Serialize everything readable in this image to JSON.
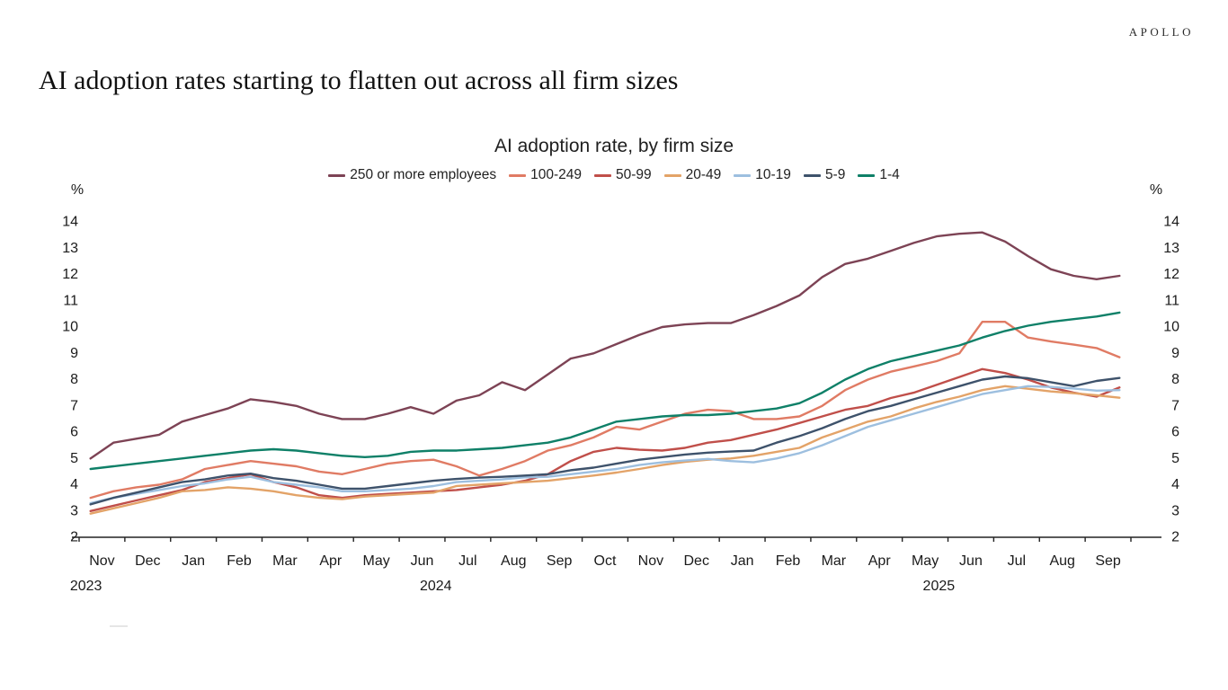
{
  "header": {
    "brand": "APOLLO",
    "title": "AI adoption rates starting to flatten out across all firm sizes"
  },
  "chart_data": {
    "type": "line",
    "title": "AI adoption rate, by firm size",
    "unit_label": "%",
    "legend_position": "top",
    "grid": false,
    "y_axis": {
      "min": 2,
      "max": 14,
      "ticks": [
        14,
        13,
        12,
        11,
        10,
        9,
        8,
        7,
        6,
        5,
        4,
        3,
        2
      ],
      "label": "%"
    },
    "x_axis": {
      "months": [
        "Nov",
        "Dec",
        "Jan",
        "Feb",
        "Mar",
        "Apr",
        "May",
        "Jun",
        "Jul",
        "Aug",
        "Sep",
        "Oct",
        "Nov",
        "Dec",
        "Jan",
        "Feb",
        "Mar",
        "Apr",
        "May",
        "Jun",
        "Jul",
        "Aug",
        "Sep"
      ],
      "years": [
        {
          "label": "2023",
          "month_center": -0.35
        },
        {
          "label": "2024",
          "month_center": 7.3
        },
        {
          "label": "2025",
          "month_center": 18.3
        }
      ]
    },
    "points_per_month": 2,
    "series": [
      {
        "name": "250 or more employees",
        "color": "#7d4355",
        "values": [
          5.0,
          5.6,
          5.75,
          5.9,
          6.4,
          6.65,
          6.9,
          7.25,
          7.15,
          7.0,
          6.7,
          6.5,
          6.5,
          6.7,
          6.95,
          6.7,
          7.2,
          7.4,
          7.9,
          7.6,
          8.2,
          8.8,
          9.0,
          9.35,
          9.7,
          10.0,
          10.1,
          10.15,
          10.15,
          10.45,
          10.8,
          11.2,
          11.9,
          12.4,
          12.6,
          12.9,
          13.2,
          13.45,
          13.55,
          13.6,
          13.25,
          12.7,
          12.2,
          11.95,
          11.82,
          11.95
        ]
      },
      {
        "name": "100-249",
        "color": "#e07b64",
        "values": [
          3.5,
          3.75,
          3.9,
          4.0,
          4.2,
          4.6,
          4.75,
          4.9,
          4.8,
          4.7,
          4.5,
          4.4,
          4.6,
          4.8,
          4.9,
          4.95,
          4.7,
          4.35,
          4.6,
          4.9,
          5.3,
          5.5,
          5.8,
          6.2,
          6.1,
          6.4,
          6.7,
          6.85,
          6.8,
          6.5,
          6.5,
          6.6,
          7.0,
          7.6,
          8.0,
          8.3,
          8.5,
          8.7,
          9.0,
          10.2,
          10.2,
          9.6,
          9.45,
          9.33,
          9.2,
          8.85
        ]
      },
      {
        "name": "50-99",
        "color": "#c04f4a",
        "values": [
          3.0,
          3.2,
          3.4,
          3.6,
          3.8,
          4.1,
          4.25,
          4.4,
          4.1,
          3.9,
          3.6,
          3.5,
          3.6,
          3.65,
          3.7,
          3.75,
          3.8,
          3.9,
          4.0,
          4.15,
          4.4,
          4.9,
          5.25,
          5.4,
          5.33,
          5.3,
          5.4,
          5.6,
          5.7,
          5.9,
          6.1,
          6.35,
          6.6,
          6.85,
          7.0,
          7.3,
          7.5,
          7.8,
          8.1,
          8.4,
          8.25,
          8.0,
          7.7,
          7.5,
          7.35,
          7.7
        ]
      },
      {
        "name": "20-49",
        "color": "#e3a368",
        "values": [
          2.9,
          3.1,
          3.3,
          3.5,
          3.75,
          3.8,
          3.9,
          3.85,
          3.75,
          3.6,
          3.5,
          3.45,
          3.55,
          3.6,
          3.65,
          3.7,
          3.95,
          4.0,
          4.05,
          4.1,
          4.15,
          4.25,
          4.35,
          4.46,
          4.6,
          4.75,
          4.87,
          4.95,
          5.0,
          5.1,
          5.25,
          5.4,
          5.8,
          6.1,
          6.4,
          6.6,
          6.9,
          7.15,
          7.35,
          7.6,
          7.75,
          7.65,
          7.55,
          7.48,
          7.4,
          7.31
        ]
      },
      {
        "name": "10-19",
        "color": "#9dbfdf",
        "values": [
          3.3,
          3.5,
          3.65,
          3.8,
          3.95,
          4.05,
          4.2,
          4.3,
          4.1,
          4.0,
          3.9,
          3.75,
          3.75,
          3.8,
          3.85,
          3.95,
          4.1,
          4.15,
          4.2,
          4.28,
          4.3,
          4.4,
          4.5,
          4.6,
          4.75,
          4.85,
          4.92,
          4.98,
          4.9,
          4.85,
          5.0,
          5.2,
          5.5,
          5.85,
          6.2,
          6.45,
          6.7,
          6.95,
          7.2,
          7.45,
          7.6,
          7.75,
          7.72,
          7.66,
          7.58,
          7.6
        ]
      },
      {
        "name": "5-9",
        "color": "#3e526b",
        "values": [
          3.25,
          3.5,
          3.7,
          3.9,
          4.1,
          4.2,
          4.35,
          4.42,
          4.25,
          4.15,
          4.0,
          3.85,
          3.85,
          3.95,
          4.05,
          4.15,
          4.22,
          4.27,
          4.3,
          4.35,
          4.4,
          4.55,
          4.65,
          4.8,
          4.95,
          5.05,
          5.15,
          5.22,
          5.26,
          5.3,
          5.6,
          5.85,
          6.15,
          6.5,
          6.8,
          7.0,
          7.25,
          7.5,
          7.75,
          8.0,
          8.12,
          8.05,
          7.9,
          7.75,
          7.95,
          8.06
        ]
      },
      {
        "name": "1-4",
        "color": "#0f8068",
        "values": [
          4.6,
          4.7,
          4.8,
          4.9,
          5.0,
          5.1,
          5.2,
          5.3,
          5.35,
          5.3,
          5.2,
          5.1,
          5.05,
          5.1,
          5.25,
          5.3,
          5.3,
          5.35,
          5.4,
          5.5,
          5.6,
          5.8,
          6.1,
          6.4,
          6.5,
          6.6,
          6.65,
          6.65,
          6.7,
          6.8,
          6.9,
          7.1,
          7.5,
          8.0,
          8.4,
          8.7,
          8.9,
          9.1,
          9.3,
          9.6,
          9.85,
          10.05,
          10.2,
          10.3,
          10.4,
          10.55
        ]
      }
    ]
  }
}
